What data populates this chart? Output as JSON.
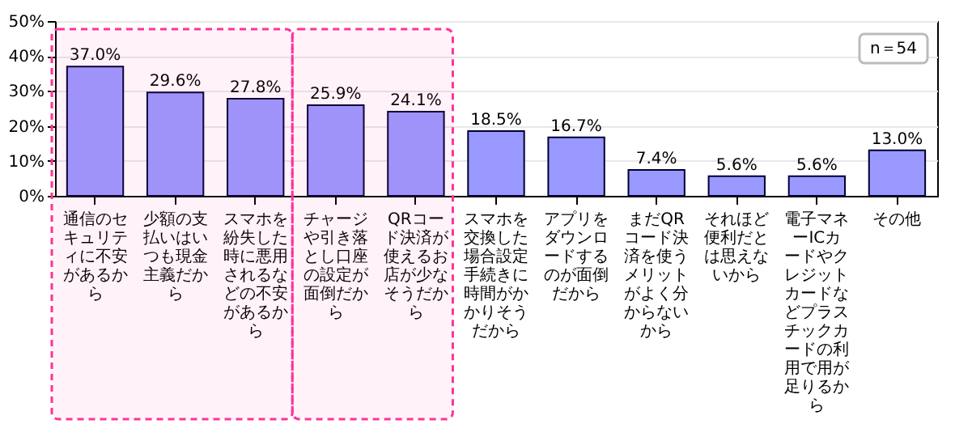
{
  "chart_data": {
    "type": "bar",
    "categories": [
      "通信のセキュリティに不安があるから",
      "少額の支払いはいつも現金主義だから",
      "スマホを紛失した時に悪用されるなどの不安があるから",
      "チャージや引き落とし口座の設定が面倒だから",
      "QRコード決済が使えるお店が少なそうだから",
      "スマホを交換した場合設定手続きに時間がかかりそうだから",
      "アプリをダウンロードするのが面倒だから",
      "まだQRコード決済を使うメリットがよく分からないから",
      "それほど便利だとは思えないから",
      "電子マネーICカードやクレジットカードなどプラスチックカードの利用で用が足りるから",
      "その他"
    ],
    "values": [
      37.0,
      29.6,
      27.8,
      25.9,
      24.1,
      18.5,
      16.7,
      7.4,
      5.6,
      5.6,
      13.0
    ],
    "value_labels": [
      "37.0%",
      "29.6%",
      "27.8%",
      "25.9%",
      "24.1%",
      "18.5%",
      "16.7%",
      "7.4%",
      "5.6%",
      "5.6%",
      "13.0%"
    ],
    "color": "#9999ff",
    "ylim": [
      0,
      50
    ],
    "yticks": [
      {
        "value": 0,
        "label": "0%"
      },
      {
        "value": 10,
        "label": "10%"
      },
      {
        "value": 20,
        "label": "20%"
      },
      {
        "value": 30,
        "label": "30%"
      },
      {
        "value": 40,
        "label": "40%"
      },
      {
        "value": 50,
        "label": "50%"
      }
    ],
    "grid": "y",
    "annotations": [
      "n＝54"
    ],
    "bands": [
      {
        "axis": "x",
        "from": "通信のセキュリティに不安があるから",
        "to": "スマホを紛失した時に悪用されるなどの不安があるから",
        "color": "#ff3399"
      },
      {
        "axis": "x",
        "from": "チャージや引き落とし口座の設定が面倒だから",
        "to": "QRコード決済が使えるお店が少なそうだから",
        "color": "#ff3399"
      }
    ]
  }
}
